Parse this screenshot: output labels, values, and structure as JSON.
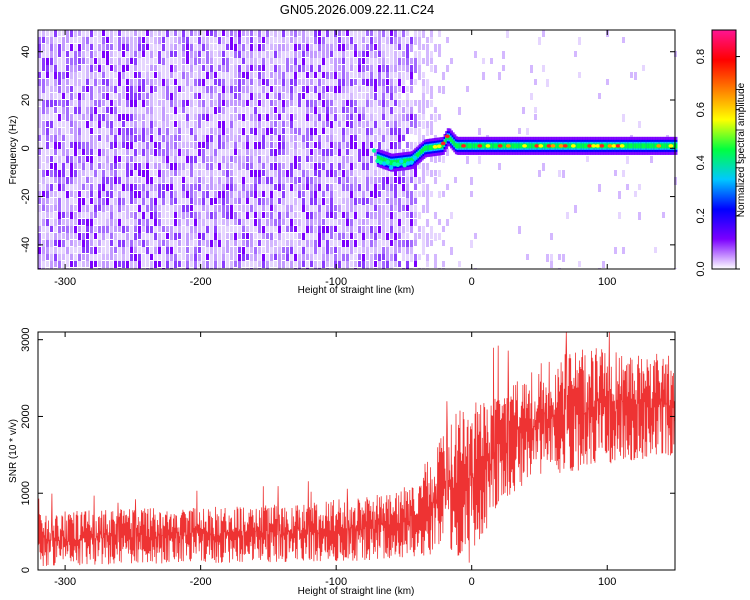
{
  "title": "GN05.2026.009.22.11.C24",
  "chart_data": [
    {
      "type": "heatmap",
      "xlabel": "Height of straight line (km)",
      "ylabel": "Frequency (Hz)",
      "xlim": [
        -320,
        150
      ],
      "ylim": [
        -50,
        49
      ],
      "xticks": [
        -300,
        -200,
        -100,
        0,
        100
      ],
      "yticks": [
        -40,
        -20,
        0,
        20,
        40
      ],
      "colorbar": {
        "label": "Normalized spectral amplitude",
        "range": [
          0,
          0.9
        ],
        "ticks": [
          0.0,
          0.2,
          0.4,
          0.6,
          0.8
        ],
        "colors": [
          "#ffffff",
          "#7b00ff",
          "#0000ff",
          "#00c8ff",
          "#00ff40",
          "#ffff00",
          "#ff7f00",
          "#ff0000",
          "#ff1493"
        ]
      },
      "noise_region_x": [
        -320,
        -40
      ],
      "trace": [
        {
          "x": -70,
          "y": -4
        },
        {
          "x": -60,
          "y": -6
        },
        {
          "x": -45,
          "y": -5
        },
        {
          "x": -35,
          "y": 0
        },
        {
          "x": -22,
          "y": 1
        },
        {
          "x": -18,
          "y": 5
        },
        {
          "x": -12,
          "y": 1
        },
        {
          "x": 0,
          "y": 1
        },
        {
          "x": 50,
          "y": 1
        },
        {
          "x": 100,
          "y": 1
        },
        {
          "x": 150,
          "y": 1
        }
      ],
      "grid": false
    },
    {
      "type": "line",
      "xlabel": "Height of straight line (km)",
      "ylabel": "SNR (10 * v/v)",
      "xlim": [
        -320,
        150
      ],
      "ylim": [
        0,
        3100
      ],
      "xticks": [
        -300,
        -200,
        -100,
        0,
        100
      ],
      "yticks": [
        0,
        1000,
        2000,
        3000
      ],
      "series": [
        {
          "color": "#ee3333",
          "envelope": [
            {
              "x": -320,
              "low": 50,
              "high": 750
            },
            {
              "x": -250,
              "low": 80,
              "high": 800
            },
            {
              "x": -150,
              "low": 100,
              "high": 850
            },
            {
              "x": -80,
              "low": 120,
              "high": 950
            },
            {
              "x": -50,
              "low": 150,
              "high": 1100
            },
            {
              "x": -30,
              "low": 200,
              "high": 1500
            },
            {
              "x": -15,
              "low": 250,
              "high": 2000
            },
            {
              "x": 0,
              "low": 50,
              "high": 2200
            },
            {
              "x": 20,
              "low": 900,
              "high": 2300
            },
            {
              "x": 50,
              "low": 1200,
              "high": 2700
            },
            {
              "x": 80,
              "low": 1300,
              "high": 2900
            },
            {
              "x": 110,
              "low": 1400,
              "high": 2900
            },
            {
              "x": 150,
              "low": 1500,
              "high": 2800
            }
          ],
          "spike_max": 3100
        }
      ],
      "grid": false
    }
  ]
}
